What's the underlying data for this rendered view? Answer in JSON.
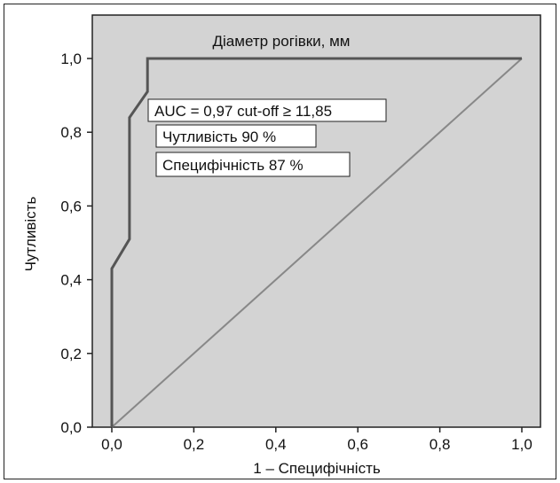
{
  "chart_data": {
    "type": "line",
    "title": "Діаметр рогівки, мм",
    "xlabel": "1 – Специфічність",
    "ylabel": "Чутливість",
    "xlim": [
      0,
      1
    ],
    "ylim": [
      0,
      1
    ],
    "x_ticks": [
      "0,0",
      "0,2",
      "0,4",
      "0,6",
      "0,8",
      "1,0"
    ],
    "y_ticks": [
      "0,0",
      "0,2",
      "0,4",
      "0,6",
      "0,8",
      "1,0"
    ],
    "grid": false,
    "plot_background": "#d3d3d3",
    "series": [
      {
        "color": "#555555",
        "x": [
          0,
          0,
          0.043,
          0.043,
          0.087,
          0.087,
          1.0
        ],
        "y": [
          0,
          0.43,
          0.51,
          0.84,
          0.91,
          1.0,
          1.0
        ]
      },
      {
        "color": "#888888",
        "x": [
          0,
          1
        ],
        "y": [
          0,
          1
        ]
      }
    ],
    "annotations": [
      "AUC = 0,97 cut-off ≥ 11,85",
      "Чутливість 90 %",
      "Специфічність 87 %"
    ]
  }
}
